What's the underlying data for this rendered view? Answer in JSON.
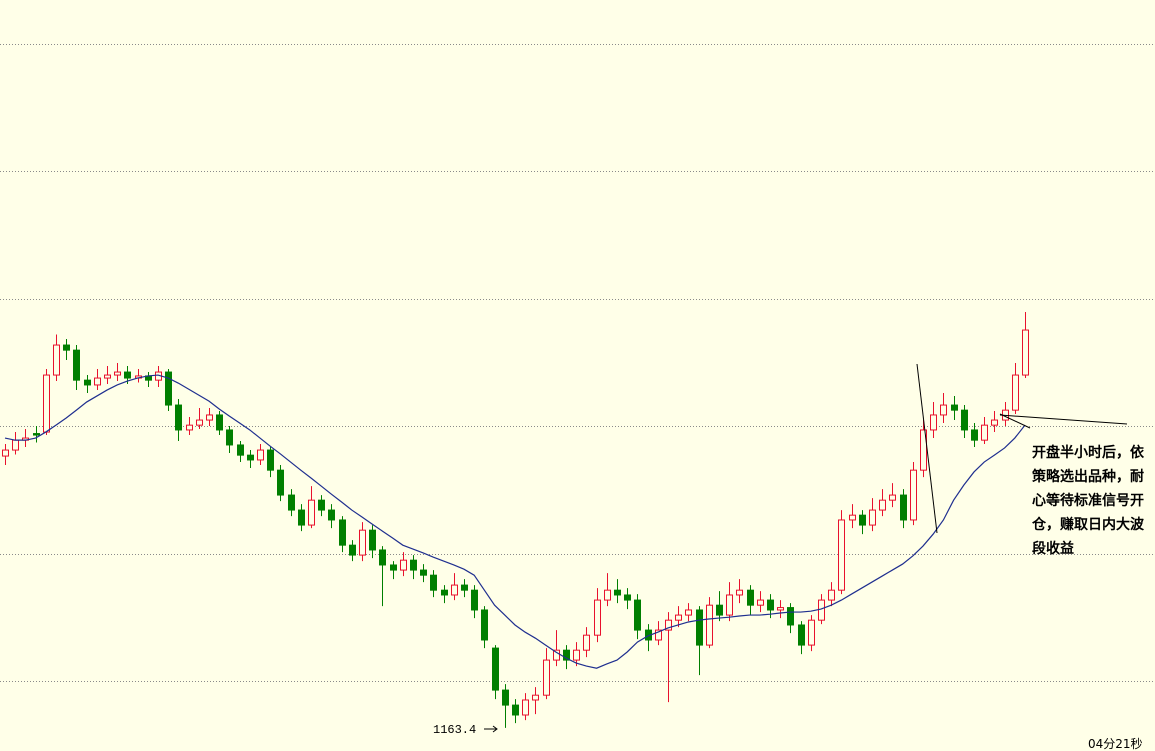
{
  "chart_data": {
    "type": "candlestick",
    "ylim": [
      1155.7,
      1406.0
    ],
    "grid_lines": [
      1391.3,
      1349.0,
      1306.3,
      1264.0,
      1221.3,
      1179.0
    ],
    "up_color": "#e8112d",
    "down_color": "#007f00",
    "candles": [
      [
        1254.0,
        1258.0,
        1251.0,
        1256.0
      ],
      [
        1256.0,
        1262.0,
        1254.5,
        1259.3
      ],
      [
        1259.3,
        1263.0,
        1257.0,
        1260.0
      ],
      [
        1261.5,
        1264.0,
        1258.5,
        1261.0
      ],
      [
        1262.0,
        1283.0,
        1261.0,
        1281.0
      ],
      [
        1281.0,
        1294.5,
        1279.0,
        1291.0
      ],
      [
        1291.0,
        1293.0,
        1286.0,
        1289.3
      ],
      [
        1289.3,
        1291.0,
        1276.0,
        1279.3
      ],
      [
        1279.3,
        1281.0,
        1275.0,
        1277.7
      ],
      [
        1277.7,
        1283.0,
        1276.0,
        1280.0
      ],
      [
        1280.0,
        1284.0,
        1278.0,
        1281.0
      ],
      [
        1281.0,
        1285.0,
        1279.0,
        1282.0
      ],
      [
        1282.0,
        1284.0,
        1278.0,
        1280.0
      ],
      [
        1280.0,
        1283.0,
        1278.5,
        1280.7
      ],
      [
        1280.7,
        1282.0,
        1277.0,
        1279.3
      ],
      [
        1279.3,
        1284.0,
        1277.0,
        1282.0
      ],
      [
        1282.0,
        1283.0,
        1269.0,
        1271.0
      ],
      [
        1271.0,
        1273.0,
        1259.0,
        1262.7
      ],
      [
        1262.7,
        1267.0,
        1261.0,
        1264.3
      ],
      [
        1264.3,
        1270.0,
        1263.0,
        1266.0
      ],
      [
        1266.0,
        1270.0,
        1264.0,
        1267.7
      ],
      [
        1267.7,
        1269.0,
        1261.0,
        1262.7
      ],
      [
        1262.7,
        1264.0,
        1255.0,
        1257.7
      ],
      [
        1257.7,
        1259.0,
        1252.0,
        1254.3
      ],
      [
        1254.3,
        1256.0,
        1250.0,
        1252.7
      ],
      [
        1252.7,
        1258.0,
        1251.0,
        1256.0
      ],
      [
        1256.0,
        1257.0,
        1247.0,
        1249.3
      ],
      [
        1249.3,
        1251.0,
        1239.0,
        1241.0
      ],
      [
        1241.0,
        1243.0,
        1234.0,
        1236.0
      ],
      [
        1236.0,
        1238.0,
        1229.0,
        1231.0
      ],
      [
        1231.0,
        1244.0,
        1230.0,
        1239.3
      ],
      [
        1239.3,
        1241.0,
        1234.0,
        1236.0
      ],
      [
        1236.0,
        1238.0,
        1230.0,
        1232.7
      ],
      [
        1232.7,
        1234.0,
        1222.0,
        1224.3
      ],
      [
        1224.3,
        1226.0,
        1219.0,
        1221.0
      ],
      [
        1221.0,
        1232.0,
        1219.0,
        1229.3
      ],
      [
        1229.3,
        1231.0,
        1220.0,
        1222.7
      ],
      [
        1222.7,
        1224.0,
        1204.0,
        1217.7
      ],
      [
        1217.7,
        1219.0,
        1213.0,
        1216.0
      ],
      [
        1216.0,
        1222.0,
        1214.0,
        1219.3
      ],
      [
        1219.3,
        1221.0,
        1213.0,
        1216.0
      ],
      [
        1216.0,
        1218.0,
        1212.0,
        1214.3
      ],
      [
        1214.3,
        1216.0,
        1207.0,
        1209.3
      ],
      [
        1209.3,
        1211.0,
        1205.0,
        1207.7
      ],
      [
        1207.7,
        1215.0,
        1206.0,
        1211.0
      ],
      [
        1211.0,
        1213.0,
        1207.0,
        1209.3
      ],
      [
        1209.3,
        1211.0,
        1200.0,
        1202.7
      ],
      [
        1202.7,
        1204.0,
        1190.0,
        1192.7
      ],
      [
        1190.0,
        1191.0,
        1173.0,
        1176.0
      ],
      [
        1176.0,
        1178.0,
        1163.4,
        1171.0
      ],
      [
        1171.0,
        1173.0,
        1165.0,
        1167.7
      ],
      [
        1167.7,
        1175.0,
        1166.0,
        1172.7
      ],
      [
        1172.7,
        1177.0,
        1168.0,
        1174.3
      ],
      [
        1174.3,
        1190.0,
        1173.0,
        1186.0
      ],
      [
        1186.0,
        1196.0,
        1184.0,
        1189.3
      ],
      [
        1189.3,
        1191.0,
        1183.0,
        1186.0
      ],
      [
        1186.0,
        1192.0,
        1184.0,
        1189.3
      ],
      [
        1189.3,
        1197.0,
        1187.0,
        1194.3
      ],
      [
        1194.3,
        1210.0,
        1192.0,
        1206.0
      ],
      [
        1206.0,
        1215.0,
        1204.0,
        1209.3
      ],
      [
        1209.3,
        1213.0,
        1205.0,
        1207.7
      ],
      [
        1207.7,
        1210.0,
        1203.0,
        1206.0
      ],
      [
        1206.0,
        1208.0,
        1193.0,
        1196.0
      ],
      [
        1196.0,
        1198.0,
        1189.0,
        1192.7
      ],
      [
        1192.7,
        1199.0,
        1191.0,
        1196.0
      ],
      [
        1196.0,
        1202.0,
        1172.0,
        1199.3
      ],
      [
        1199.3,
        1204.0,
        1197.0,
        1201.0
      ],
      [
        1201.0,
        1205.0,
        1199.0,
        1202.7
      ],
      [
        1202.7,
        1204.0,
        1181.0,
        1191.0
      ],
      [
        1191.0,
        1207.0,
        1190.0,
        1204.3
      ],
      [
        1204.3,
        1209.0,
        1199.0,
        1201.0
      ],
      [
        1201.0,
        1212.0,
        1199.0,
        1207.7
      ],
      [
        1207.7,
        1213.0,
        1205.0,
        1209.3
      ],
      [
        1209.3,
        1211.0,
        1201.0,
        1204.3
      ],
      [
        1204.3,
        1209.0,
        1202.0,
        1206.0
      ],
      [
        1206.0,
        1208.0,
        1200.0,
        1202.7
      ],
      [
        1202.7,
        1206.0,
        1200.0,
        1203.5
      ],
      [
        1203.5,
        1205.0,
        1195.0,
        1197.7
      ],
      [
        1197.7,
        1199.0,
        1188.0,
        1191.0
      ],
      [
        1191.0,
        1201.0,
        1189.0,
        1199.3
      ],
      [
        1199.3,
        1208.0,
        1198.0,
        1206.0
      ],
      [
        1206.0,
        1212.0,
        1204.0,
        1209.3
      ],
      [
        1209.3,
        1236.0,
        1208.0,
        1232.7
      ],
      [
        1232.7,
        1238.0,
        1230.0,
        1234.3
      ],
      [
        1234.3,
        1236.0,
        1228.0,
        1231.0
      ],
      [
        1231.0,
        1240.0,
        1229.0,
        1236.0
      ],
      [
        1236.0,
        1243.0,
        1234.0,
        1239.3
      ],
      [
        1239.3,
        1245.0,
        1237.0,
        1241.0
      ],
      [
        1241.0,
        1243.0,
        1230.0,
        1232.7
      ],
      [
        1232.7,
        1252.0,
        1231.0,
        1249.3
      ],
      [
        1249.3,
        1266.0,
        1247.0,
        1262.7
      ],
      [
        1262.7,
        1272.0,
        1260.0,
        1267.7
      ],
      [
        1267.7,
        1275.0,
        1265.0,
        1271.0
      ],
      [
        1271.0,
        1274.0,
        1266.0,
        1269.3
      ],
      [
        1269.3,
        1271.0,
        1260.0,
        1262.7
      ],
      [
        1262.7,
        1265.0,
        1257.0,
        1259.3
      ],
      [
        1259.3,
        1267.0,
        1258.0,
        1264.3
      ],
      [
        1264.3,
        1269.0,
        1262.0,
        1266.0
      ],
      [
        1266.0,
        1272.0,
        1264.0,
        1269.3
      ],
      [
        1269.3,
        1285.0,
        1268.0,
        1281.0
      ],
      [
        1281.0,
        1302.0,
        1280.0,
        1296.0
      ]
    ],
    "ma": {
      "color": "#1f2f8f",
      "values": [
        1260.0,
        1259.3,
        1259.3,
        1260.0,
        1262.0,
        1264.3,
        1266.7,
        1269.3,
        1272.0,
        1274.0,
        1276.0,
        1277.7,
        1279.0,
        1280.0,
        1280.7,
        1281.0,
        1280.0,
        1278.3,
        1276.3,
        1274.3,
        1272.3,
        1269.7,
        1267.3,
        1265.0,
        1262.7,
        1260.0,
        1257.3,
        1254.7,
        1252.0,
        1249.3,
        1246.7,
        1244.0,
        1241.3,
        1238.7,
        1236.0,
        1233.7,
        1231.3,
        1229.0,
        1226.7,
        1224.3,
        1223.0,
        1221.7,
        1220.3,
        1219.0,
        1217.7,
        1216.3,
        1214.3,
        1209.3,
        1204.3,
        1201.0,
        1197.7,
        1195.3,
        1193.3,
        1191.0,
        1188.7,
        1186.7,
        1185.0,
        1184.0,
        1183.3,
        1184.7,
        1186.0,
        1188.7,
        1192.0,
        1194.0,
        1195.3,
        1196.7,
        1197.7,
        1198.7,
        1199.3,
        1199.7,
        1200.0,
        1200.3,
        1200.7,
        1201.0,
        1201.0,
        1201.3,
        1201.7,
        1202.0,
        1202.0,
        1202.3,
        1203.0,
        1204.3,
        1206.0,
        1208.0,
        1210.0,
        1212.0,
        1214.0,
        1216.0,
        1218.0,
        1220.7,
        1224.0,
        1228.0,
        1232.7,
        1239.3,
        1244.3,
        1248.7,
        1252.0,
        1254.3,
        1256.7,
        1260.0,
        1264.3
      ]
    },
    "annotation_lines": [
      "开盘半小时后，依",
      "策略选出品种，耐",
      "心等待标准信号开",
      "仓，赚取日内大波",
      "段收益"
    ],
    "countdown": "04分21秒"
  }
}
